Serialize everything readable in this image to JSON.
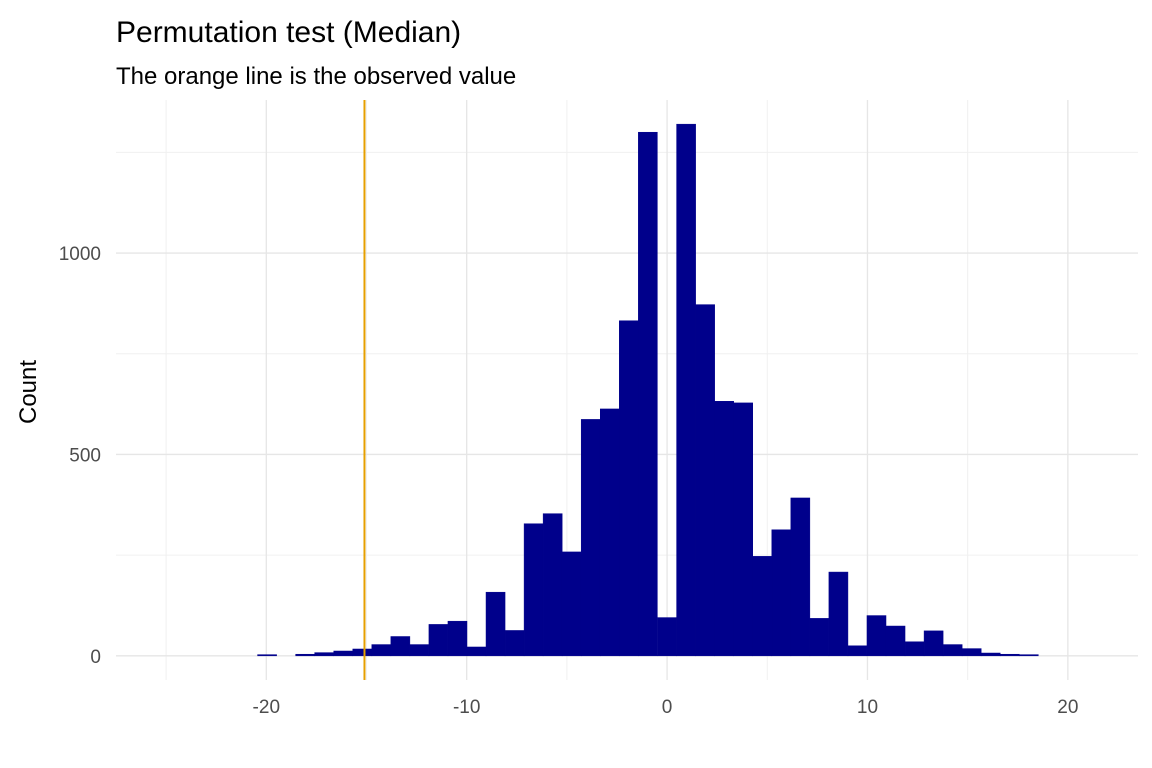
{
  "chart_data": {
    "type": "bar",
    "title": "Permutation test (Median)",
    "subtitle": "The orange line is the observed value",
    "xlabel": "",
    "ylabel": "Count",
    "xlim": [
      -27.5,
      23.5
    ],
    "ylim": [
      -60,
      1380
    ],
    "grid": true,
    "x_ticks": [
      -20,
      -10,
      0,
      10,
      20
    ],
    "x_tick_labels": [
      "-20",
      "-10",
      "0",
      "10",
      "20"
    ],
    "y_ticks": [
      0,
      500,
      1000
    ],
    "y_tick_labels": [
      "0",
      "500",
      "1000"
    ],
    "observed_value": -15.1,
    "observed_color": "#E69F00",
    "bar_color": "#00008B",
    "bin_width": 0.95,
    "bins": [
      {
        "x": -19.96,
        "count": 3
      },
      {
        "x": -18.06,
        "count": 4
      },
      {
        "x": -17.11,
        "count": 8
      },
      {
        "x": -16.16,
        "count": 12
      },
      {
        "x": -15.21,
        "count": 17
      },
      {
        "x": -14.26,
        "count": 28
      },
      {
        "x": -13.31,
        "count": 48
      },
      {
        "x": -12.36,
        "count": 28
      },
      {
        "x": -11.41,
        "count": 78
      },
      {
        "x": -10.46,
        "count": 86
      },
      {
        "x": -9.51,
        "count": 22
      },
      {
        "x": -8.56,
        "count": 158
      },
      {
        "x": -7.61,
        "count": 63
      },
      {
        "x": -6.66,
        "count": 328
      },
      {
        "x": -5.71,
        "count": 353
      },
      {
        "x": -4.76,
        "count": 258
      },
      {
        "x": -3.81,
        "count": 587
      },
      {
        "x": -2.86,
        "count": 613
      },
      {
        "x": -1.91,
        "count": 832
      },
      {
        "x": -0.96,
        "count": 1300
      },
      {
        "x": 0.0,
        "count": 95
      },
      {
        "x": 0.95,
        "count": 1320
      },
      {
        "x": 1.9,
        "count": 872
      },
      {
        "x": 2.85,
        "count": 632
      },
      {
        "x": 3.8,
        "count": 628
      },
      {
        "x": 4.75,
        "count": 247
      },
      {
        "x": 5.7,
        "count": 313
      },
      {
        "x": 6.65,
        "count": 392
      },
      {
        "x": 7.6,
        "count": 93
      },
      {
        "x": 8.55,
        "count": 208
      },
      {
        "x": 9.5,
        "count": 25
      },
      {
        "x": 10.45,
        "count": 100
      },
      {
        "x": 11.4,
        "count": 74
      },
      {
        "x": 12.35,
        "count": 35
      },
      {
        "x": 13.3,
        "count": 62
      },
      {
        "x": 14.25,
        "count": 28
      },
      {
        "x": 15.2,
        "count": 18
      },
      {
        "x": 16.15,
        "count": 7
      },
      {
        "x": 17.1,
        "count": 4
      },
      {
        "x": 18.05,
        "count": 3
      }
    ]
  }
}
